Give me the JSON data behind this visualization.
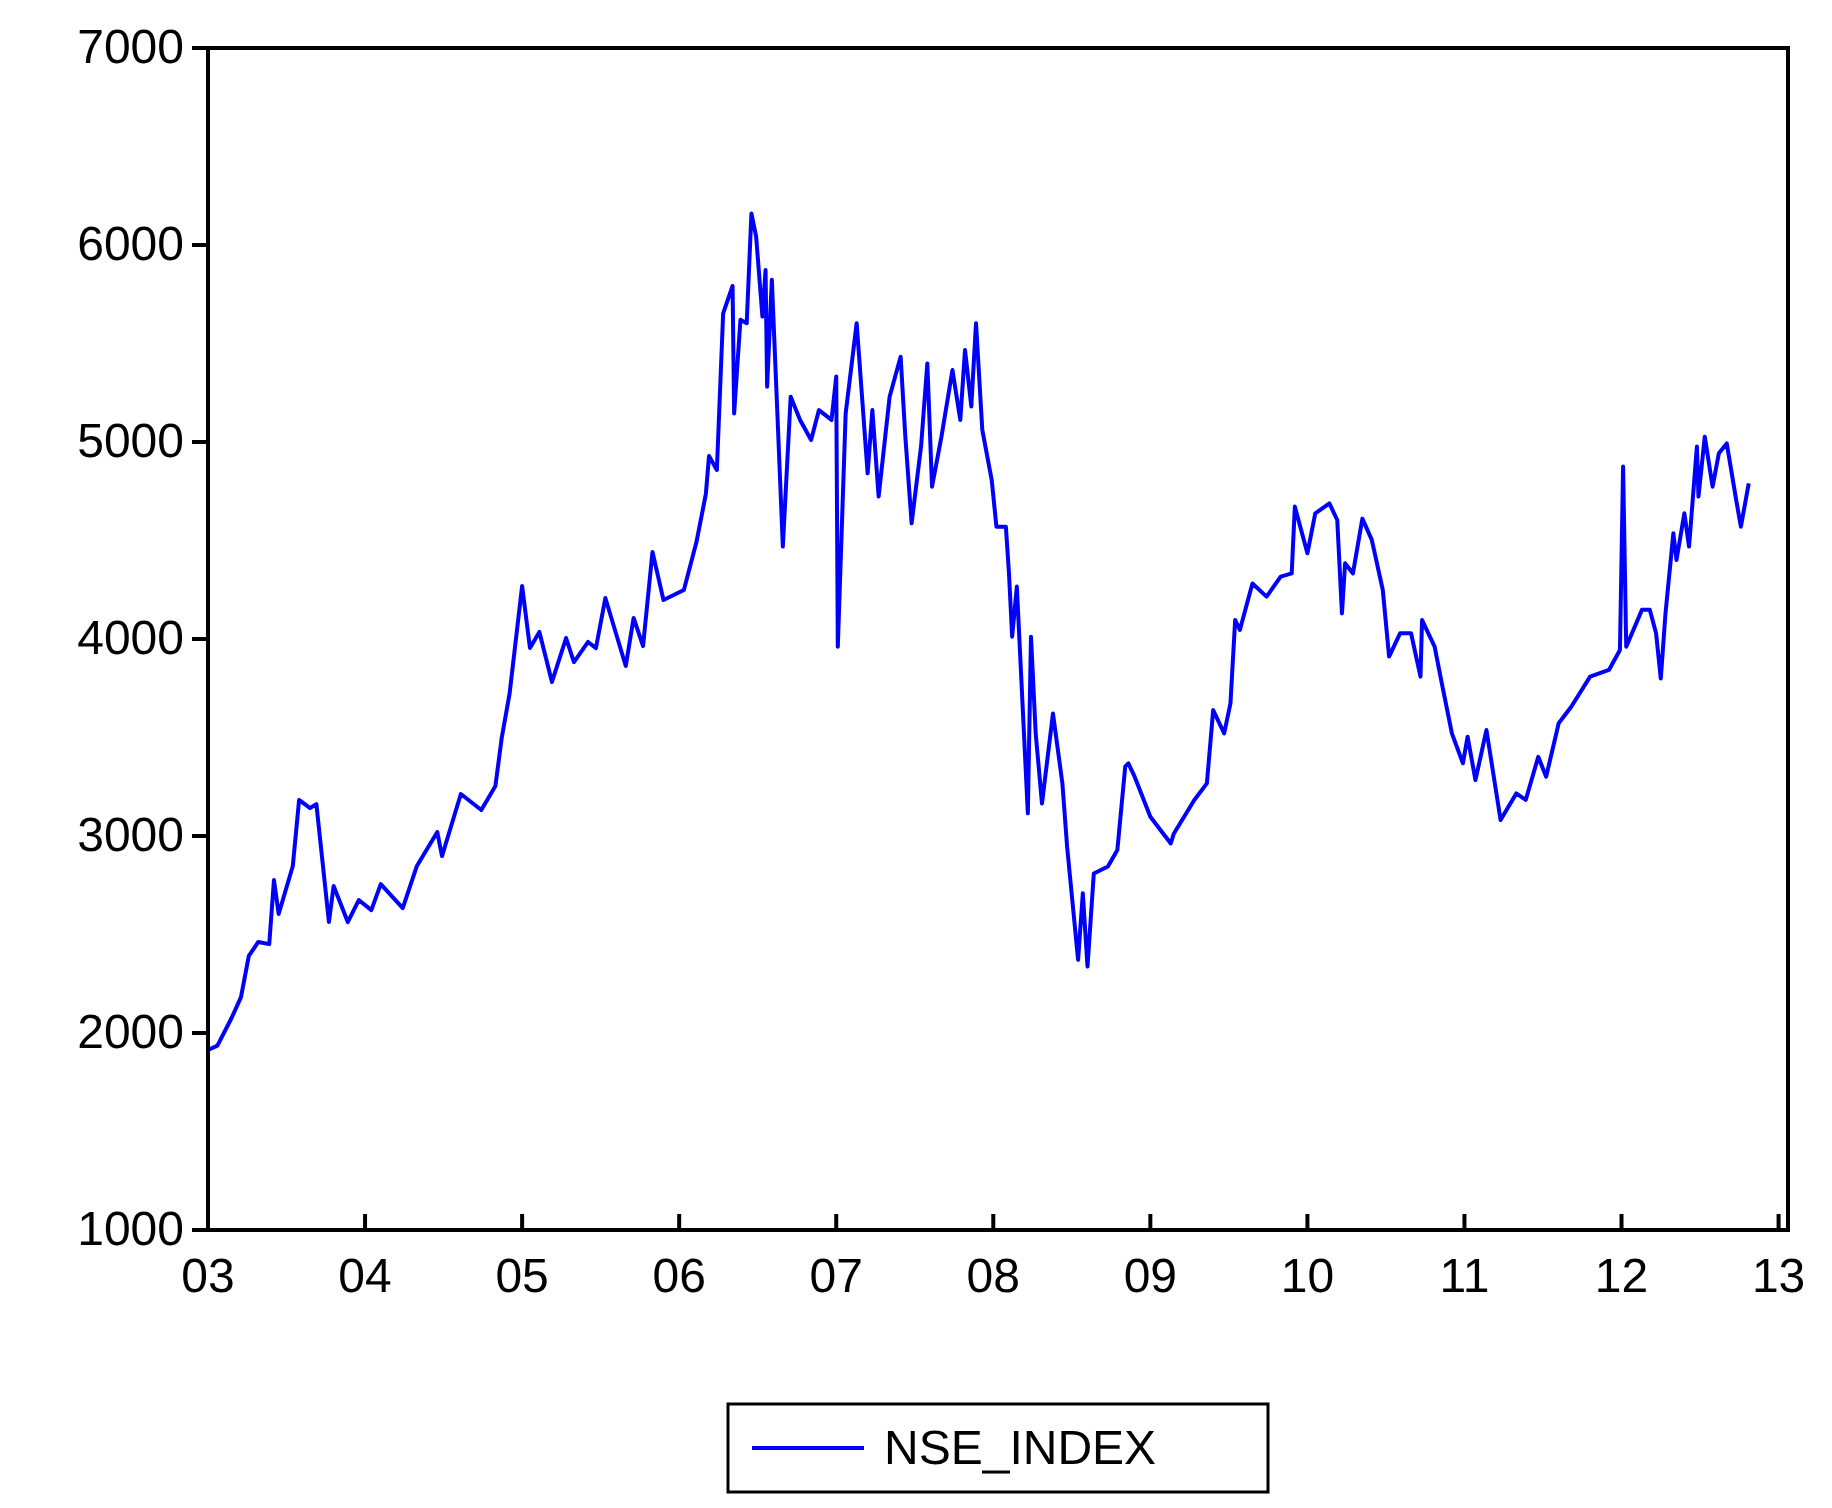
{
  "chart_data": {
    "type": "line",
    "x": [
      2003.0,
      2003.06,
      2003.15,
      2003.21,
      2003.26,
      2003.32,
      2003.39,
      2003.42,
      2003.45,
      2003.54,
      2003.58,
      2003.65,
      2003.69,
      2003.77,
      2003.8,
      2003.89,
      2003.96,
      2004.04,
      2004.1,
      2004.24,
      2004.33,
      2004.46,
      2004.49,
      2004.61,
      2004.74,
      2004.83,
      2004.87,
      2004.92,
      2005.0,
      2005.05,
      2005.11,
      2005.19,
      2005.28,
      2005.33,
      2005.42,
      2005.47,
      2005.53,
      2005.66,
      2005.71,
      2005.77,
      2005.83,
      2005.9,
      2006.03,
      2006.11,
      2006.17,
      2006.19,
      2006.24,
      2006.28,
      2006.34,
      2006.35,
      2006.39,
      2006.43,
      2006.46,
      2006.49,
      2006.53,
      2006.55,
      2006.56,
      2006.59,
      2006.62,
      2006.66,
      2006.71,
      2006.77,
      2006.84,
      2006.89,
      2006.97,
      2007.0,
      2007.01,
      2007.06,
      2007.13,
      2007.2,
      2007.23,
      2007.27,
      2007.34,
      2007.41,
      2007.44,
      2007.48,
      2007.54,
      2007.58,
      2007.61,
      2007.67,
      2007.74,
      2007.79,
      2007.82,
      2007.86,
      2007.89,
      2007.93,
      2007.99,
      2008.02,
      2008.08,
      2008.1,
      2008.12,
      2008.15,
      2008.22,
      2008.24,
      2008.27,
      2008.31,
      2008.38,
      2008.44,
      2008.47,
      2008.54,
      2008.57,
      2008.6,
      2008.64,
      2008.73,
      2008.79,
      2008.84,
      2008.86,
      2008.9,
      2009.0,
      2009.13,
      2009.15,
      2009.28,
      2009.36,
      2009.4,
      2009.47,
      2009.51,
      2009.54,
      2009.57,
      2009.65,
      2009.74,
      2009.83,
      2009.9,
      2009.92,
      2010.0,
      2010.05,
      2010.14,
      2010.19,
      2010.22,
      2010.24,
      2010.29,
      2010.35,
      2010.41,
      2010.48,
      2010.52,
      2010.59,
      2010.66,
      2010.72,
      2010.73,
      2010.81,
      2010.86,
      2010.92,
      2010.99,
      2011.02,
      2011.07,
      2011.14,
      2011.23,
      2011.33,
      2011.39,
      2011.47,
      2011.52,
      2011.6,
      2011.68,
      2011.8,
      2011.92,
      2011.99,
      2012.01,
      2012.03,
      2012.13,
      2012.18,
      2012.22,
      2012.25,
      2012.28,
      2012.33,
      2012.35,
      2012.4,
      2012.43,
      2012.48,
      2012.49,
      2012.53,
      2012.58,
      2012.62,
      2012.67,
      2012.73,
      2012.76,
      2012.81
    ],
    "series": [
      {
        "name": "NSE_INDEX",
        "color": "#0000ff",
        "values": [
          1914,
          1936,
          2076,
          2182,
          2391,
          2462,
          2451,
          2777,
          2604,
          2848,
          3183,
          3142,
          3162,
          2563,
          2746,
          2563,
          2675,
          2624,
          2756,
          2634,
          2848,
          3020,
          2898,
          3213,
          3132,
          3254,
          3497,
          3721,
          4269,
          3954,
          4036,
          3782,
          4005,
          3883,
          3985,
          3954,
          4208,
          3863,
          4107,
          3964,
          4442,
          4198,
          4249,
          4492,
          4736,
          4929,
          4858,
          5653,
          5792,
          5145,
          5620,
          5603,
          6160,
          6043,
          5637,
          5873,
          5281,
          5823,
          5247,
          4469,
          5230,
          5112,
          5010,
          5162,
          5112,
          5332,
          3961,
          5145,
          5603,
          4841,
          5162,
          4723,
          5230,
          5433,
          5027,
          4587,
          4977,
          5399,
          4773,
          5027,
          5365,
          5112,
          5467,
          5180,
          5603,
          5061,
          4807,
          4570,
          4570,
          4333,
          4012,
          4266,
          3115,
          4012,
          3521,
          3165,
          3622,
          3267,
          2946,
          2371,
          2709,
          2337,
          2810,
          2845,
          2929,
          3352,
          3369,
          3301,
          3098,
          2962,
          3013,
          3183,
          3267,
          3639,
          3521,
          3673,
          4096,
          4046,
          4282,
          4215,
          4317,
          4333,
          4672,
          4435,
          4638,
          4688,
          4604,
          4130,
          4384,
          4333,
          4611,
          4503,
          4249,
          3911,
          4029,
          4029,
          3809,
          4096,
          3961,
          3758,
          3521,
          3369,
          3504,
          3284,
          3538,
          3081,
          3216,
          3183,
          3402,
          3301,
          3572,
          3656,
          3809,
          3843,
          3944,
          4875,
          3961,
          4148,
          4148,
          4029,
          3799,
          4130,
          4537,
          4401,
          4638,
          4469,
          4977,
          4723,
          5027,
          4773,
          4943,
          4993,
          4706,
          4570,
          4790
        ]
      }
    ],
    "xlim": [
      2003,
      2013.06
    ],
    "xticks": [
      {
        "value": 2003,
        "label": "03"
      },
      {
        "value": 2004,
        "label": "04"
      },
      {
        "value": 2005,
        "label": "05"
      },
      {
        "value": 2006,
        "label": "06"
      },
      {
        "value": 2007,
        "label": "07"
      },
      {
        "value": 2008,
        "label": "08"
      },
      {
        "value": 2009,
        "label": "09"
      },
      {
        "value": 2010,
        "label": "10"
      },
      {
        "value": 2011,
        "label": "11"
      },
      {
        "value": 2012,
        "label": "12"
      },
      {
        "value": 2013,
        "label": "13"
      }
    ],
    "ylim": [
      1000,
      7000
    ],
    "yticks": [
      1000,
      2000,
      3000,
      4000,
      5000,
      6000,
      7000
    ],
    "legend": "bottom",
    "grid": false
  }
}
